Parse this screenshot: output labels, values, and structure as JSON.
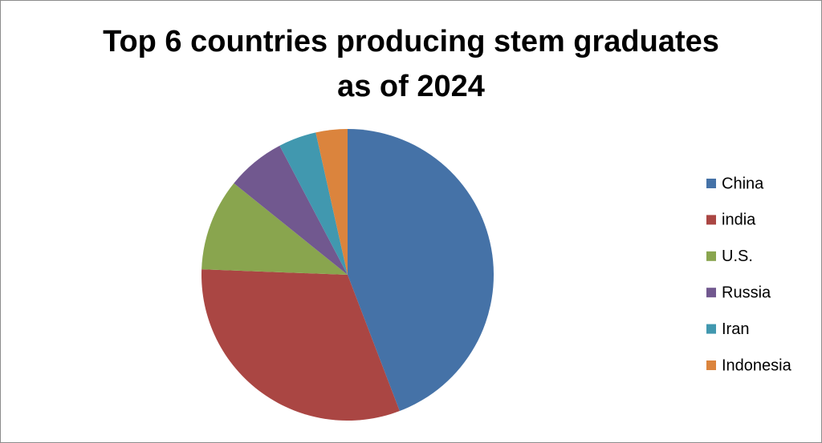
{
  "chart_data": {
    "type": "pie",
    "title": "Top 6 countries producing stem graduates as of 2024",
    "categories": [
      "China",
      "india",
      "U.S.",
      "Russia",
      "Iran",
      "Indonesia"
    ],
    "values": [
      44.2,
      31.4,
      10.2,
      6.5,
      4.2,
      3.5
    ],
    "colors": [
      "#4572a7",
      "#aa4643",
      "#89a54e",
      "#71588f",
      "#4198af",
      "#db843d"
    ],
    "legend": "right"
  }
}
